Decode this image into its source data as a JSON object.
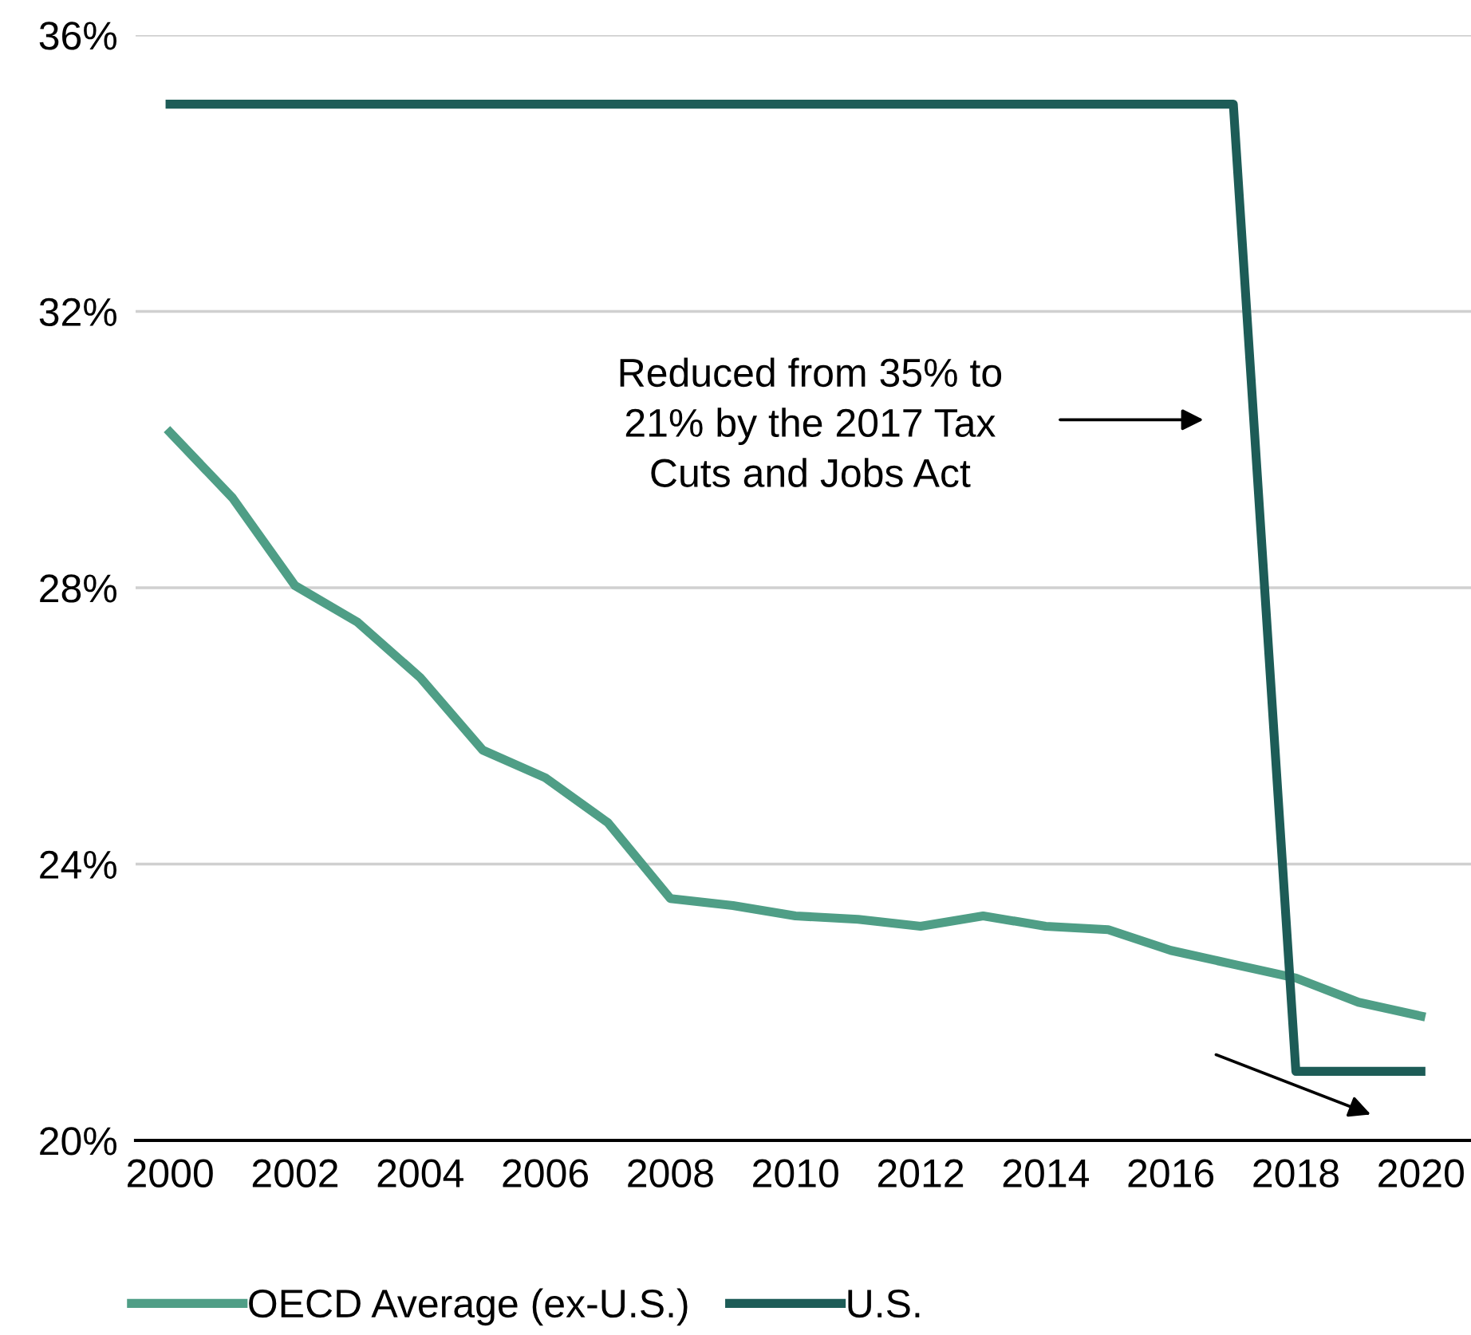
{
  "chart_data": {
    "type": "line",
    "x": [
      2000,
      2001,
      2002,
      2003,
      2004,
      2005,
      2006,
      2007,
      2008,
      2009,
      2010,
      2011,
      2012,
      2013,
      2014,
      2015,
      2016,
      2017,
      2018,
      2019,
      2020
    ],
    "series": [
      {
        "name": "OECD Average (ex-U.S.)",
        "color": "#4f9e86",
        "values": [
          30.25,
          29.3,
          28.03,
          27.5,
          26.7,
          25.65,
          25.25,
          24.6,
          23.5,
          23.4,
          23.25,
          23.2,
          23.1,
          23.25,
          23.1,
          23.05,
          22.75,
          22.55,
          22.35,
          22.0,
          21.8
        ]
      },
      {
        "name": "U.S.",
        "color": "#1d5c57",
        "values": [
          35,
          35,
          35,
          35,
          35,
          35,
          35,
          35,
          35,
          35,
          35,
          35,
          35,
          35,
          35,
          35,
          35,
          35,
          21,
          21,
          21
        ]
      }
    ],
    "xlim": [
      1999.45,
      2020.8
    ],
    "xticks": [
      2000,
      2002,
      2004,
      2006,
      2008,
      2010,
      2012,
      2014,
      2016,
      2018,
      2020
    ],
    "ylim": [
      20,
      36
    ],
    "yticks": [
      {
        "value": 20,
        "label": "20%"
      },
      {
        "value": 24,
        "label": "24%"
      },
      {
        "value": 28,
        "label": "28%"
      },
      {
        "value": 32,
        "label": "32%"
      },
      {
        "value": 36,
        "label": "36%"
      }
    ],
    "grid": "y",
    "legend": "bottom",
    "marker": "none",
    "line_style": "solid",
    "annotations": [
      "Reduced from 35% to\n21% by the 2017 Tax\nCuts and Jobs Act"
    ]
  }
}
